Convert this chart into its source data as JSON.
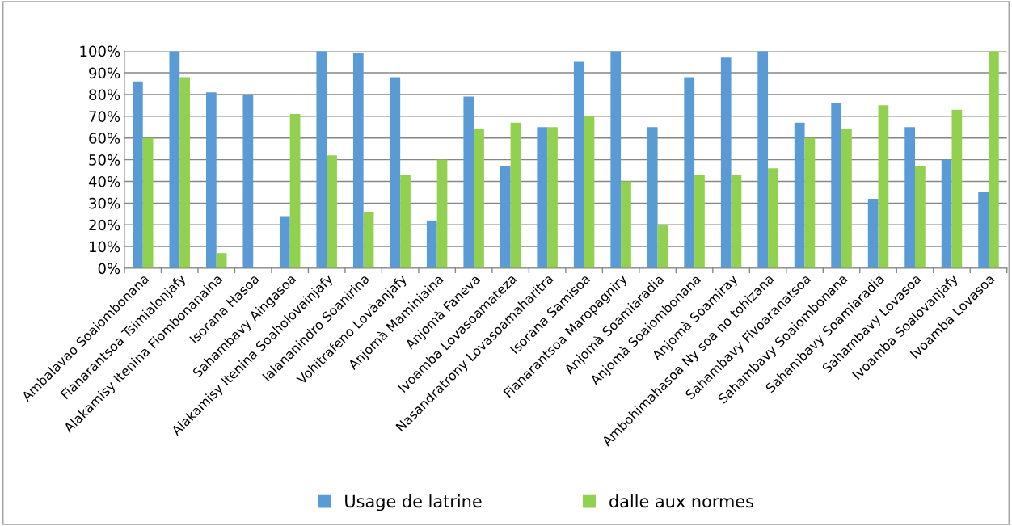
{
  "chart_data": {
    "type": "bar",
    "categories": [
      "Ambalavao Soaiombonana",
      "Fianarantsoa Tsimialonjafy",
      "Alakamisy Itenina Fiombonanaina",
      "Isorana Hasoa",
      "Sahambavy Aingasoa",
      "Alakamisy Itenina Soaholovainjafy",
      "Ialananindro Soanirina",
      "Vohitrafeno Lovàanjafy",
      "Anjomà Maminiaina",
      "Anjomà Faneva",
      "Ivoamba Lovasoamateza",
      "Nasandratrony Lovasoamaharitra",
      "Isorana Samisoa",
      "Fianarantsoa Maropagniry",
      "Anjomà Soamiaradia",
      "Anjomà Soaiombonana",
      "Anjomà Soamiray",
      "Ambohimahasoa Ny soa no tohizana",
      "Sahambavy Fivoaranatsoa",
      "Sahambavy Soaiombonana",
      "Sahambavy Soamiaradia",
      "Sahambavy Lovasoa",
      "Ivoamba Soalovanjafy",
      "Ivoamba Lovasoa"
    ],
    "series": [
      {
        "name": "Usage de latrine",
        "color": "#5b9bd5",
        "values": [
          86,
          100,
          81,
          80,
          24,
          100,
          99,
          88,
          22,
          79,
          47,
          65,
          95,
          100,
          65,
          88,
          97,
          100,
          67,
          76,
          32,
          65,
          50,
          35
        ]
      },
      {
        "name": "dalle aux normes",
        "color": "#92d050",
        "values": [
          60,
          88,
          7,
          0,
          71,
          52,
          26,
          43,
          50,
          64,
          67,
          65,
          70,
          40,
          20,
          43,
          43,
          46,
          60,
          64,
          75,
          47,
          73,
          100
        ]
      }
    ],
    "ylim": [
      0,
      100
    ],
    "yticks": [
      {
        "value": 0,
        "label": "0%"
      },
      {
        "value": 10,
        "label": "10%"
      },
      {
        "value": 20,
        "label": "20%"
      },
      {
        "value": 30,
        "label": "30%"
      },
      {
        "value": 40,
        "label": "40%"
      },
      {
        "value": 50,
        "label": "50%"
      },
      {
        "value": 60,
        "label": "60%"
      },
      {
        "value": 70,
        "label": "70%"
      },
      {
        "value": 80,
        "label": "80%"
      },
      {
        "value": 90,
        "label": "90%"
      },
      {
        "value": 100,
        "label": "100%"
      }
    ],
    "grid": "y",
    "legend": "bottom"
  }
}
